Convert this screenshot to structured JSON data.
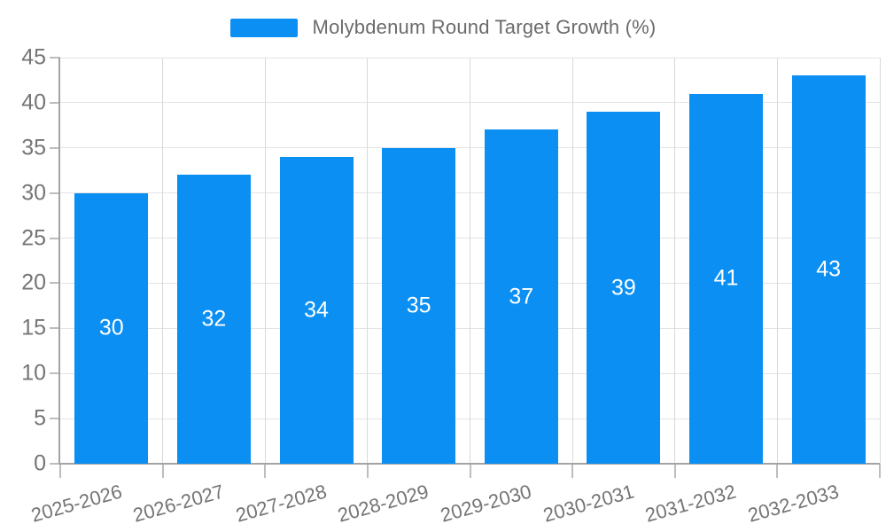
{
  "legend": {
    "label": "Molybdenum Round Target Growth (%)",
    "swatch_color": "#0b8ff2"
  },
  "chart_data": {
    "type": "bar",
    "title": "Molybdenum Round Target Growth (%)",
    "categories": [
      "2025-2026",
      "2026-2027",
      "2027-2028",
      "2028-2029",
      "2029-2030",
      "2030-2031",
      "2031-2032",
      "2032-2033"
    ],
    "values": [
      30,
      32,
      34,
      35,
      37,
      39,
      41,
      43
    ],
    "series": [
      {
        "name": "Molybdenum Round Target Growth (%)",
        "values": [
          30,
          32,
          34,
          35,
          37,
          39,
          41,
          43
        ]
      }
    ],
    "xlabel": "",
    "ylabel": "",
    "ylim": [
      0,
      45
    ],
    "yticks": [
      0,
      5,
      10,
      15,
      20,
      25,
      30,
      35,
      40,
      45
    ],
    "grid": true,
    "legend_position": "top",
    "bar_color": "#0b8ff2",
    "bar_label_color": "#ffffff",
    "axis_label_color": "#757575"
  }
}
